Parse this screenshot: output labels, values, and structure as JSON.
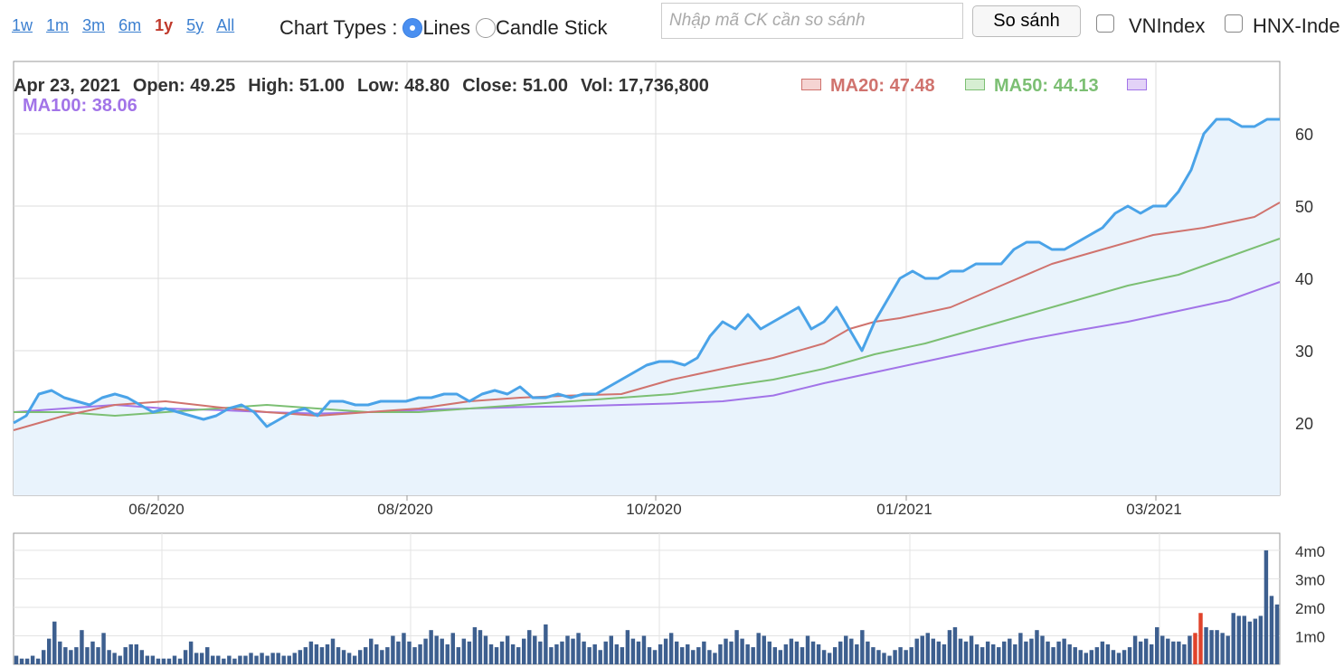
{
  "toolbar": {
    "ranges": [
      "1w",
      "1m",
      "3m",
      "6m",
      "1y",
      "5y",
      "All"
    ],
    "active_range": "1y",
    "chart_types_label": "Chart Types :",
    "lines_label": "Lines",
    "candle_label": "Candle Stick",
    "selected_type": "Lines",
    "compare_placeholder": "Nhập mã CK cần so sánh",
    "compare_button": "So sánh",
    "vnindex_label": "VNIndex",
    "hnxindex_label": "HNX-Inde"
  },
  "header": {
    "date": "Apr 23, 2021",
    "open": "Open: 49.25",
    "high": "High: 51.00",
    "low": "Low: 48.80",
    "close": "Close: 51.00",
    "vol": "Vol: 17,736,800",
    "ma20": "MA20: 47.48",
    "ma50": "MA50: 44.13",
    "ma100": "MA100: 38.06"
  },
  "colors": {
    "price": "#4aa3e8",
    "ma20": "#d0736e",
    "ma50": "#7cbf73",
    "ma100": "#a274e8",
    "area": "#e9f3fc",
    "volume": "#3d5f8f",
    "volume_highlight": "#e0432b"
  },
  "chart_data": {
    "type": "line",
    "xlabel": "",
    "ylabel": "",
    "x_ticks": [
      "06/2020",
      "08/2020",
      "10/2020",
      "01/2021",
      "03/2021"
    ],
    "y_ticks": [
      20,
      30,
      40,
      50,
      60
    ],
    "ylim": [
      10,
      70
    ],
    "volume_ticks": [
      "1m0",
      "2m0",
      "3m0",
      "4m0"
    ],
    "volume_ylim": [
      0,
      4.6
    ],
    "grid": true,
    "series": [
      {
        "key": "price",
        "x": [
          0,
          1,
          2,
          3,
          4,
          5,
          6,
          7,
          8,
          9,
          10,
          11,
          12,
          13,
          14,
          15,
          16,
          17,
          18,
          19,
          20,
          21,
          22,
          23,
          24,
          25,
          26,
          27,
          28,
          29,
          30,
          31,
          32,
          33,
          34,
          35,
          36,
          37,
          38,
          39,
          40,
          41,
          42,
          43,
          44,
          45,
          46,
          47,
          48,
          49,
          50,
          51,
          52,
          53,
          54,
          55,
          56,
          57,
          58,
          59,
          60,
          61,
          62,
          63,
          64,
          65,
          66,
          67,
          68,
          69,
          70,
          71,
          72,
          73,
          74,
          75,
          76,
          77,
          78,
          79,
          80,
          81,
          82,
          83,
          84,
          85,
          86,
          87,
          88,
          89,
          90,
          91,
          92,
          93,
          94,
          95,
          96,
          97,
          98,
          99,
          100
        ],
        "y": [
          20,
          21,
          24,
          24.5,
          23.5,
          23,
          22.5,
          23.5,
          24,
          23.5,
          22.5,
          21.5,
          22,
          21.5,
          21,
          20.5,
          21,
          22,
          22.5,
          21.5,
          19.5,
          20.5,
          21.5,
          22,
          21,
          23,
          23,
          22.5,
          22.5,
          23,
          23,
          23,
          23.5,
          23.5,
          24,
          24,
          23,
          24,
          24.5,
          24,
          25,
          23.5,
          23.5,
          24,
          23.5,
          24,
          24,
          25,
          26,
          27,
          28,
          28.5,
          28.5,
          28,
          29,
          32,
          34,
          33,
          35,
          33,
          34,
          35,
          36,
          33,
          34,
          36,
          33,
          30,
          34,
          37,
          40,
          41,
          40,
          40,
          41,
          41,
          42,
          42,
          42,
          44,
          45,
          45,
          44,
          44,
          45,
          46,
          47,
          49,
          50,
          49,
          50,
          50,
          52,
          55,
          60,
          62,
          62,
          61,
          61,
          62,
          62
        ]
      },
      {
        "key": "ma20",
        "x": [
          0,
          4,
          8,
          12,
          16,
          20,
          24,
          28,
          32,
          36,
          40,
          44,
          48,
          50,
          52,
          56,
          60,
          64,
          66,
          68,
          70,
          74,
          78,
          82,
          86,
          90,
          94,
          98,
          100
        ],
        "y": [
          19,
          21,
          22.5,
          23,
          22.2,
          21.5,
          21,
          21.5,
          22,
          23,
          23.5,
          23.8,
          24,
          25,
          26,
          27.5,
          29,
          31,
          33,
          34,
          34.5,
          36,
          39,
          42,
          44,
          46,
          47,
          48.5,
          50.5
        ]
      },
      {
        "key": "ma50",
        "x": [
          0,
          4,
          8,
          12,
          16,
          20,
          24,
          28,
          32,
          36,
          40,
          44,
          48,
          52,
          56,
          60,
          64,
          68,
          72,
          76,
          80,
          84,
          88,
          92,
          96,
          100
        ],
        "y": [
          21.5,
          21.5,
          21,
          21.5,
          22,
          22.5,
          22,
          21.5,
          21.5,
          22,
          22.5,
          23,
          23.5,
          24,
          25,
          26,
          27.5,
          29.5,
          31,
          33,
          35,
          37,
          39,
          40.5,
          43,
          45.5
        ]
      },
      {
        "key": "ma100",
        "x": [
          0,
          4,
          8,
          12,
          16,
          20,
          24,
          28,
          32,
          36,
          40,
          44,
          48,
          52,
          56,
          60,
          64,
          68,
          72,
          76,
          80,
          84,
          88,
          92,
          96,
          100
        ],
        "y": [
          21.5,
          22,
          22.5,
          22,
          21.8,
          21.5,
          21.3,
          21.5,
          21.8,
          22,
          22.2,
          22.3,
          22.5,
          22.7,
          23,
          23.8,
          25.5,
          27,
          28.5,
          30,
          31.5,
          32.8,
          34,
          35.5,
          37,
          39.5
        ]
      }
    ],
    "volume": {
      "values": [
        0.3,
        0.2,
        0.2,
        0.3,
        0.2,
        0.5,
        0.9,
        1.5,
        0.8,
        0.6,
        0.5,
        0.6,
        1.2,
        0.6,
        0.8,
        0.6,
        1.1,
        0.5,
        0.4,
        0.3,
        0.6,
        0.7,
        0.7,
        0.5,
        0.3,
        0.3,
        0.2,
        0.2,
        0.2,
        0.3,
        0.2,
        0.5,
        0.8,
        0.4,
        0.4,
        0.6,
        0.3,
        0.3,
        0.2,
        0.3,
        0.2,
        0.3,
        0.3,
        0.4,
        0.3,
        0.4,
        0.3,
        0.4,
        0.4,
        0.3,
        0.3,
        0.4,
        0.5,
        0.6,
        0.8,
        0.7,
        0.6,
        0.7,
        0.9,
        0.6,
        0.5,
        0.4,
        0.3,
        0.5,
        0.6,
        0.9,
        0.7,
        0.5,
        0.6,
        1.0,
        0.8,
        1.1,
        0.8,
        0.6,
        0.7,
        0.9,
        1.2,
        1.0,
        0.9,
        0.7,
        1.1,
        0.6,
        0.9,
        0.8,
        1.3,
        1.2,
        1.0,
        0.7,
        0.6,
        0.8,
        1.0,
        0.7,
        0.6,
        0.9,
        1.2,
        1.0,
        0.8,
        1.4,
        0.6,
        0.7,
        0.8,
        1.0,
        0.9,
        1.1,
        0.8,
        0.6,
        0.7,
        0.5,
        0.8,
        1.0,
        0.7,
        0.6,
        1.2,
        0.9,
        0.8,
        1.0,
        0.6,
        0.5,
        0.7,
        0.9,
        1.1,
        0.8,
        0.6,
        0.7,
        0.5,
        0.6,
        0.8,
        0.5,
        0.4,
        0.7,
        0.9,
        0.8,
        1.2,
        0.9,
        0.7,
        0.6,
        1.1,
        1.0,
        0.8,
        0.6,
        0.5,
        0.7,
        0.9,
        0.8,
        0.6,
        1.0,
        0.8,
        0.7,
        0.5,
        0.4,
        0.6,
        0.8,
        1.0,
        0.9,
        0.7,
        1.2,
        0.8,
        0.6,
        0.5,
        0.4,
        0.3,
        0.5,
        0.6,
        0.5,
        0.6,
        0.9,
        1.0,
        1.1,
        0.9,
        0.8,
        0.7,
        1.2,
        1.3,
        0.9,
        0.8,
        1.0,
        0.7,
        0.6,
        0.8,
        0.7,
        0.6,
        0.8,
        0.9,
        0.7,
        1.1,
        0.8,
        0.9,
        1.2,
        1.0,
        0.8,
        0.6,
        0.8,
        0.9,
        0.7,
        0.6,
        0.5,
        0.4,
        0.5,
        0.6,
        0.8,
        0.7,
        0.5,
        0.4,
        0.5,
        0.6,
        1.0,
        0.8,
        0.9,
        0.7,
        1.3,
        1.0,
        0.9,
        0.8,
        0.8,
        0.7,
        1.0,
        1.1,
        1.8,
        1.3,
        1.2,
        1.2,
        1.1,
        1.0,
        1.8,
        1.7,
        1.7,
        1.5,
        1.6,
        1.7,
        4.0,
        2.4,
        2.1
      ],
      "highlight": [
        216,
        217
      ]
    }
  }
}
